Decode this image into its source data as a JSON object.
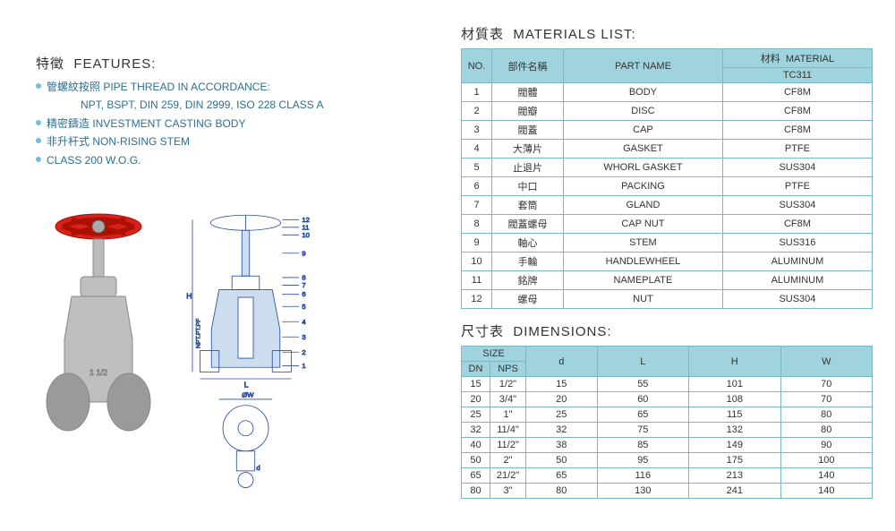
{
  "features": {
    "title_cn": "特徵",
    "title_en": "FEATURES:",
    "items": [
      {
        "cn": "管螺紋按照",
        "en": "PIPE THREAD IN ACCORDANCE:",
        "sub": "NPT, BSPT, DIN 259, DIN 2999, ISO 228 CLASS A"
      },
      {
        "cn": "精密鑄造",
        "en": "INVESTMENT CASTING BODY"
      },
      {
        "cn": "非升杆式",
        "en": "NON-RISING STEM"
      },
      {
        "cn": "",
        "en": "CLASS 200 W.O.G."
      }
    ]
  },
  "materials": {
    "title_cn": "材質表",
    "title_en": "MATERIALS LIST:",
    "headers": {
      "no": "NO.",
      "part_cn": "部件名稱",
      "part_en": "PART NAME",
      "mat_cn": "材料",
      "mat_en": "MATERIAL",
      "model": "TC311"
    },
    "rows": [
      {
        "no": "1",
        "cn": "閥體",
        "en": "BODY",
        "mat": "CF8M"
      },
      {
        "no": "2",
        "cn": "閥瓣",
        "en": "DISC",
        "mat": "CF8M"
      },
      {
        "no": "3",
        "cn": "閥蓋",
        "en": "CAP",
        "mat": "CF8M"
      },
      {
        "no": "4",
        "cn": "大薄片",
        "en": "GASKET",
        "mat": "PTFE"
      },
      {
        "no": "5",
        "cn": "止退片",
        "en": "WHORL GASKET",
        "mat": "SUS304"
      },
      {
        "no": "6",
        "cn": "中口",
        "en": "PACKING",
        "mat": "PTFE"
      },
      {
        "no": "7",
        "cn": "套筒",
        "en": "GLAND",
        "mat": "SUS304"
      },
      {
        "no": "8",
        "cn": "閥蓋螺母",
        "en": "CAP NUT",
        "mat": "CF8M"
      },
      {
        "no": "9",
        "cn": "軸心",
        "en": "STEM",
        "mat": "SUS316"
      },
      {
        "no": "10",
        "cn": "手輪",
        "en": "HANDLEWHEEL",
        "mat": "ALUMINUM"
      },
      {
        "no": "11",
        "cn": "銘牌",
        "en": "NAMEPLATE",
        "mat": "ALUMINUM"
      },
      {
        "no": "12",
        "cn": "螺母",
        "en": "NUT",
        "mat": "SUS304"
      }
    ]
  },
  "dimensions": {
    "title_cn": "尺寸表",
    "title_en": "DIMENSIONS:",
    "headers": {
      "size": "SIZE",
      "dn": "DN",
      "nps": "NPS",
      "d": "d",
      "L": "L",
      "H": "H",
      "W": "W"
    },
    "rows": [
      {
        "dn": "15",
        "nps": "1/2\"",
        "d": "15",
        "L": "55",
        "H": "101",
        "W": "70"
      },
      {
        "dn": "20",
        "nps": "3/4\"",
        "d": "20",
        "L": "60",
        "H": "108",
        "W": "70"
      },
      {
        "dn": "25",
        "nps": "1\"",
        "d": "25",
        "L": "65",
        "H": "115",
        "W": "80"
      },
      {
        "dn": "32",
        "nps": "11/4\"",
        "d": "32",
        "L": "75",
        "H": "132",
        "W": "80"
      },
      {
        "dn": "40",
        "nps": "11/2\"",
        "d": "38",
        "L": "85",
        "H": "149",
        "W": "90"
      },
      {
        "dn": "50",
        "nps": "2\"",
        "d": "50",
        "L": "95",
        "H": "175",
        "W": "100"
      },
      {
        "dn": "65",
        "nps": "21/2\"",
        "d": "65",
        "L": "116",
        "H": "213",
        "W": "140"
      },
      {
        "dn": "80",
        "nps": "3\"",
        "d": "80",
        "L": "130",
        "H": "241",
        "W": "140"
      }
    ]
  },
  "colors": {
    "header_bg": "#9fd4df",
    "border": "#7cb8c8",
    "text_blue": "#2f6f8f",
    "handwheel": "#d8201e",
    "tech_line": "#2a4da0"
  }
}
